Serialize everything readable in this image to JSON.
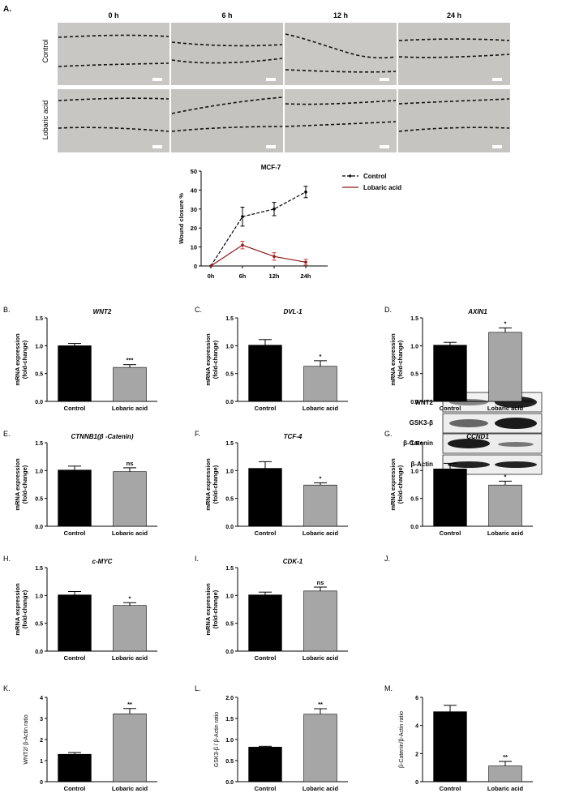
{
  "figure": {
    "panel_a": {
      "letter": "A.",
      "time_labels": [
        "0 h",
        "6 h",
        "12 h",
        "24 h"
      ],
      "row_labels": [
        "Control",
        "Lobaric acid"
      ],
      "image_bg": "#c9c7c3"
    },
    "letters": [
      "B.",
      "C.",
      "D.",
      "E.",
      "F.",
      "G.",
      "H.",
      "I.",
      "J.",
      "K.",
      "L.",
      "M."
    ]
  },
  "blot": {
    "labels": [
      "WNT2",
      "GSK3-β",
      "β-Catenin",
      "β-Actin"
    ]
  },
  "chart_data": [
    {
      "id": "A",
      "type": "line",
      "title": "MCF-7",
      "xlabel": "",
      "ylabel": "Wound closure %",
      "categories": [
        "0h",
        "6h",
        "12h",
        "24h"
      ],
      "ylim": [
        0,
        50
      ],
      "yticks": [
        0,
        10,
        20,
        30,
        40,
        50
      ],
      "legend_position": "top-right",
      "series": [
        {
          "name": "Control",
          "values": [
            0,
            26,
            30,
            39
          ],
          "errors": [
            0,
            5,
            3.5,
            3
          ],
          "color": "#000000",
          "dashed": true
        },
        {
          "name": "Lobaric acid",
          "values": [
            0,
            11,
            5,
            2
          ],
          "errors": [
            0,
            2,
            2,
            1.5
          ],
          "color": "#8b1a1a",
          "dashed": false
        }
      ]
    },
    {
      "id": "B",
      "type": "bar",
      "title": "WNT2",
      "ylabel": [
        "mRNA expression",
        "(fold-change)"
      ],
      "categories": [
        "Control",
        "Lobaric acid"
      ],
      "values": [
        1.0,
        0.61
      ],
      "errors": [
        0.04,
        0.05
      ],
      "ylim": [
        0,
        1.5
      ],
      "yticks": [
        "0.0",
        "0.5",
        "1.0",
        "1.5"
      ],
      "sig": "***",
      "colors": [
        "#000000",
        "#a6a6a6"
      ]
    },
    {
      "id": "C",
      "type": "bar",
      "title": "DVL-1",
      "ylabel": [
        "mRNA expression",
        "(fold-change)"
      ],
      "categories": [
        "Control",
        "Lobaric acid"
      ],
      "values": [
        1.01,
        0.63
      ],
      "errors": [
        0.1,
        0.1
      ],
      "ylim": [
        0,
        1.5
      ],
      "yticks": [
        "0.0",
        "0.5",
        "1.0",
        "1.5"
      ],
      "sig": "*",
      "colors": [
        "#000000",
        "#a6a6a6"
      ]
    },
    {
      "id": "D",
      "type": "bar",
      "title": "AXIN1",
      "ylabel": [
        "mRNA expression",
        "(fold-change)"
      ],
      "categories": [
        "Control",
        "Lobaric acid"
      ],
      "values": [
        1.01,
        1.24
      ],
      "errors": [
        0.05,
        0.08
      ],
      "ylim": [
        0,
        1.5
      ],
      "yticks": [
        "0.0",
        "0.5",
        "1.0",
        "1.5"
      ],
      "sig": "*",
      "colors": [
        "#000000",
        "#a6a6a6"
      ]
    },
    {
      "id": "E",
      "type": "bar",
      "title": "CTNNB1(β -Catenin)",
      "ylabel": [
        "mRNA expression",
        "(fold-change)"
      ],
      "categories": [
        "Control",
        "Lobaric acid"
      ],
      "values": [
        1.01,
        0.98
      ],
      "errors": [
        0.07,
        0.07
      ],
      "ylim": [
        0,
        1.5
      ],
      "yticks": [
        "0.0",
        "0.5",
        "1.0",
        "1.5"
      ],
      "sig": "ns",
      "colors": [
        "#000000",
        "#a6a6a6"
      ]
    },
    {
      "id": "F",
      "type": "bar",
      "title": "TCF-4",
      "ylabel": [
        "mRNA expression",
        "(fold-change)"
      ],
      "categories": [
        "Control",
        "Lobaric acid"
      ],
      "values": [
        1.04,
        0.74
      ],
      "errors": [
        0.12,
        0.04
      ],
      "ylim": [
        0,
        1.5
      ],
      "yticks": [
        "0.0",
        "0.5",
        "1.0",
        "1.5"
      ],
      "sig": "*",
      "colors": [
        "#000000",
        "#a6a6a6"
      ]
    },
    {
      "id": "G",
      "type": "bar",
      "title": "CCND1",
      "ylabel": [
        "mRNA expression",
        "(fold-change)"
      ],
      "categories": [
        "Control",
        "Lobaric acid"
      ],
      "values": [
        1.03,
        0.74
      ],
      "errors": [
        0.1,
        0.07
      ],
      "ylim": [
        0,
        1.5
      ],
      "yticks": [
        "0.0",
        "0.5",
        "1.0",
        "1.5"
      ],
      "sig": "*",
      "colors": [
        "#000000",
        "#a6a6a6"
      ]
    },
    {
      "id": "H",
      "type": "bar",
      "title": "c-MYC",
      "ylabel": [
        "mRNA expression",
        "(fold-change)"
      ],
      "categories": [
        "Control",
        "Lobaric acid"
      ],
      "values": [
        1.01,
        0.82
      ],
      "errors": [
        0.06,
        0.05
      ],
      "ylim": [
        0,
        1.5
      ],
      "yticks": [
        "0.0",
        "0.5",
        "1.0",
        "1.5"
      ],
      "sig": "*",
      "colors": [
        "#000000",
        "#a6a6a6"
      ]
    },
    {
      "id": "I",
      "type": "bar",
      "title": "CDK-1",
      "ylabel": [
        "mRNA expression",
        "(fold-change)"
      ],
      "categories": [
        "Control",
        "Lobaric acid"
      ],
      "values": [
        1.01,
        1.08
      ],
      "errors": [
        0.05,
        0.07
      ],
      "ylim": [
        0,
        1.5
      ],
      "yticks": [
        "0.0",
        "0.5",
        "1.0",
        "1.5"
      ],
      "sig": "ns",
      "colors": [
        "#000000",
        "#a6a6a6"
      ]
    },
    {
      "id": "K",
      "type": "bar",
      "title": "",
      "ylabel": [
        "WNT2/ β-Actin ratio"
      ],
      "categories": [
        "Control",
        "Lobaric acid"
      ],
      "values": [
        1.3,
        3.22
      ],
      "errors": [
        0.08,
        0.25
      ],
      "ylim": [
        0,
        4
      ],
      "yticks": [
        "0",
        "1",
        "2",
        "3",
        "4"
      ],
      "sig": "**",
      "colors": [
        "#000000",
        "#a6a6a6"
      ]
    },
    {
      "id": "L",
      "type": "bar",
      "title": "",
      "ylabel": [
        "GSK3-β / β-Actin ratio"
      ],
      "categories": [
        "Control",
        "Lobaric acid"
      ],
      "values": [
        0.82,
        1.6
      ],
      "errors": [
        0.02,
        0.13
      ],
      "ylim": [
        0,
        2.0
      ],
      "yticks": [
        "0.0",
        "0.5",
        "1.0",
        "1.5",
        "2.0"
      ],
      "sig": "**",
      "colors": [
        "#000000",
        "#a6a6a6"
      ]
    },
    {
      "id": "M",
      "type": "bar",
      "title": "",
      "ylabel": [
        "β-Catenin/β-Actin ratio"
      ],
      "categories": [
        "Control",
        "Lobaric acid"
      ],
      "values": [
        4.98,
        1.12
      ],
      "errors": [
        0.45,
        0.32
      ],
      "ylim": [
        0,
        6
      ],
      "yticks": [
        "0",
        "2",
        "4",
        "6"
      ],
      "sig": "**",
      "colors": [
        "#000000",
        "#a6a6a6"
      ]
    }
  ]
}
